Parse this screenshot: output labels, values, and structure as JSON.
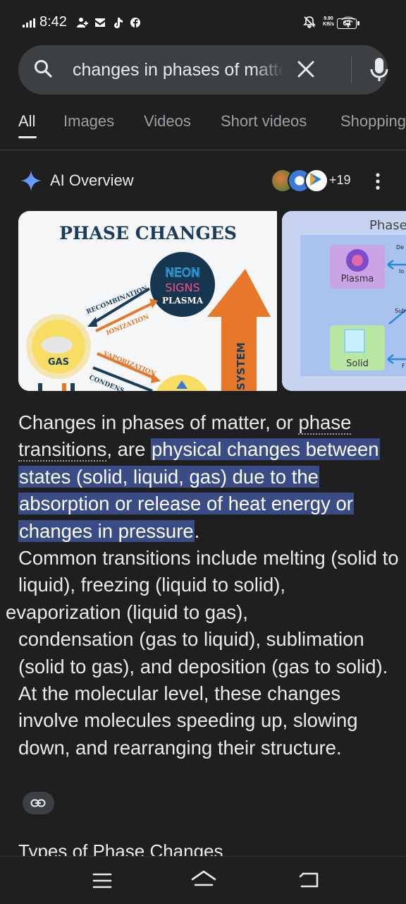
{
  "status_bar": {
    "time": "8:42",
    "net_speed_value": "9.90",
    "net_speed_unit": "KB/s",
    "battery": "62",
    "icons": [
      "signal-icon",
      "person-icon",
      "mail-icon",
      "tiktok-icon",
      "facebook-icon",
      "mute-icon",
      "wifi-icon",
      "battery-icon"
    ]
  },
  "search": {
    "query": "changes in phases of matter"
  },
  "tabs": [
    "All",
    "Images",
    "Videos",
    "Short videos",
    "Shopping"
  ],
  "ai_overview": {
    "title": "AI Overview",
    "source_count": "+19"
  },
  "image_card_1": {
    "title": "PHASE CHANGES",
    "neon_line1": "NEON",
    "neon_line2": "SIGNS",
    "plasma": "PLASMA",
    "recombination": "RECOMBINATION",
    "ionization": "IONIZATION",
    "vaporization": "VAPORIZATION",
    "condensation": "CONDENS",
    "gas": "GAS",
    "system": "SYSTEM"
  },
  "image_card_2": {
    "title": "Phase",
    "plasma": "Plasma",
    "solid": "Solid",
    "label_de": "De",
    "label_io": "Io",
    "label_sub": "Sub",
    "label_f": "F"
  },
  "overview_text": {
    "p1": "Changes in phases of matter, or ",
    "link": "phase transitions",
    "p2": ", are ",
    "highlight": "physical changes between states (solid, liquid, gas) due to the absorption or release of heat energy or changes in pressure",
    "p3": ".",
    "p4": "Common transitions include melting (solid to liquid), freezing (liquid to solid),",
    "p5": "evaporization (liquid to gas),",
    "p6": "condensation (gas to liquid), sublimation (solid to gas), and deposition (gas to solid). At the molecular level, these changes involve molecules speeding up, slowing down, and rearranging their structure."
  },
  "next_section": {
    "heading": "Types of Phase Changes"
  },
  "colors": {
    "background": "#1f1f1f",
    "search_bg": "#3c4043",
    "highlight": "#3a4c86",
    "sparkle": "#4c8df6"
  }
}
